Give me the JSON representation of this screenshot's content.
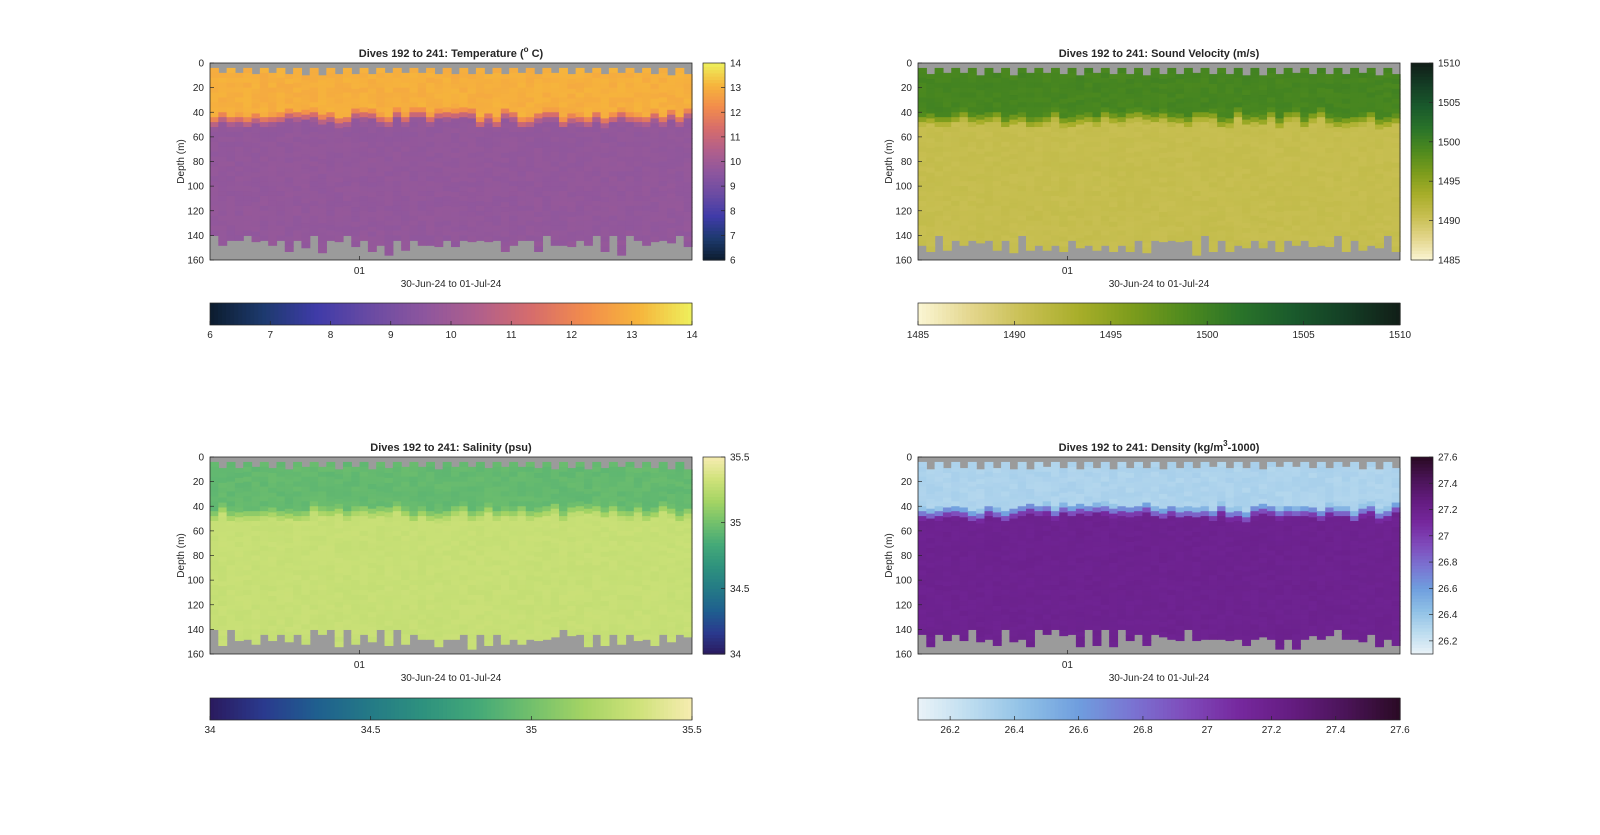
{
  "chart_data": [
    {
      "type": "heatmap",
      "title": "Dives 192 to 241: Temperature (",
      "title_sup": "o",
      "title_suffix": " C)",
      "ylabel": "Depth (m)",
      "xlabel": "30-Jun-24 to 01-Jul-24",
      "x_ticks": [
        "01"
      ],
      "y_ticks": [
        0,
        20,
        40,
        60,
        80,
        100,
        120,
        140,
        160
      ],
      "ylim": [
        0,
        160
      ],
      "colorbar_range": [
        6,
        14
      ],
      "colorbar_ticks": [
        6,
        7,
        8,
        9,
        10,
        11,
        12,
        13,
        14
      ],
      "colormap": [
        "#0c1c2e",
        "#1d3a6e",
        "#3f3ba8",
        "#6a4ba3",
        "#8d569e",
        "#b05f8c",
        "#d66c6c",
        "#f28c4c",
        "#f6b43c",
        "#eef05c"
      ],
      "profile": {
        "surface_value": 13.0,
        "mixed_layer_depth": 38,
        "deep_value": 9.7
      },
      "missing_color": "#9b9b9b"
    },
    {
      "type": "heatmap",
      "title": "Dives 192 to 241: Sound Velocity (m/s)",
      "ylabel": "Depth (m)",
      "xlabel": "30-Jun-24 to 01-Jul-24",
      "x_ticks": [
        "01"
      ],
      "y_ticks": [
        0,
        20,
        40,
        60,
        80,
        100,
        120,
        140,
        160
      ],
      "ylim": [
        0,
        160
      ],
      "colorbar_range": [
        1485,
        1510
      ],
      "colorbar_ticks": [
        1485,
        1490,
        1495,
        1500,
        1505,
        1510
      ],
      "colormap": [
        "#fbf6d4",
        "#e3d68c",
        "#c8bf52",
        "#a8ae2a",
        "#7c9c1c",
        "#4e8a1e",
        "#2a7429",
        "#1a5a2c",
        "#143e25",
        "#111e18"
      ],
      "profile": {
        "surface_value": 1499.5,
        "mixed_layer_depth": 38,
        "deep_value": 1490.8
      },
      "missing_color": "#9b9b9b"
    },
    {
      "type": "heatmap",
      "title": "Dives 192 to 241: Salinity (psu)",
      "ylabel": "Depth (m)",
      "xlabel": "30-Jun-24 to 01-Jul-24",
      "x_ticks": [
        "01"
      ],
      "y_ticks": [
        0,
        20,
        40,
        60,
        80,
        100,
        120,
        140,
        160
      ],
      "ylim": [
        0,
        160
      ],
      "colorbar_range": [
        34,
        35.5
      ],
      "colorbar_ticks": [
        34,
        34.5,
        35,
        35.5
      ],
      "colormap": [
        "#2a1a5e",
        "#2a3a8e",
        "#1f5f8f",
        "#247a86",
        "#2e927e",
        "#44a978",
        "#72c06c",
        "#a5d464",
        "#cfe27a",
        "#f6ecb0"
      ],
      "profile": {
        "surface_value": 34.95,
        "mixed_layer_depth": 38,
        "deep_value": 35.3
      },
      "missing_color": "#9b9b9b"
    },
    {
      "type": "heatmap",
      "title": "Dives 192 to 241: Density (kg/m",
      "title_sup": "3",
      "title_suffix": "-1000)",
      "ylabel": "Depth (m)",
      "xlabel": "30-Jun-24 to 01-Jul-24",
      "x_ticks": [
        "01"
      ],
      "y_ticks": [
        0,
        20,
        40,
        60,
        80,
        100,
        120,
        140,
        160
      ],
      "ylim": [
        0,
        160
      ],
      "colorbar_range": [
        26.1,
        27.6
      ],
      "colorbar_ticks": [
        26.2,
        26.4,
        26.6,
        26.8,
        27,
        27.2,
        27.4,
        27.6
      ],
      "colormap": [
        "#eaf3f8",
        "#bcdcef",
        "#8fc0e6",
        "#6f9ede",
        "#7a74d2",
        "#7f4bbb",
        "#76289e",
        "#641c80",
        "#4a1457",
        "#2a0a24"
      ],
      "profile": {
        "surface_value": 26.32,
        "mixed_layer_depth": 38,
        "deep_value": 27.18
      },
      "missing_color": "#9b9b9b"
    }
  ]
}
